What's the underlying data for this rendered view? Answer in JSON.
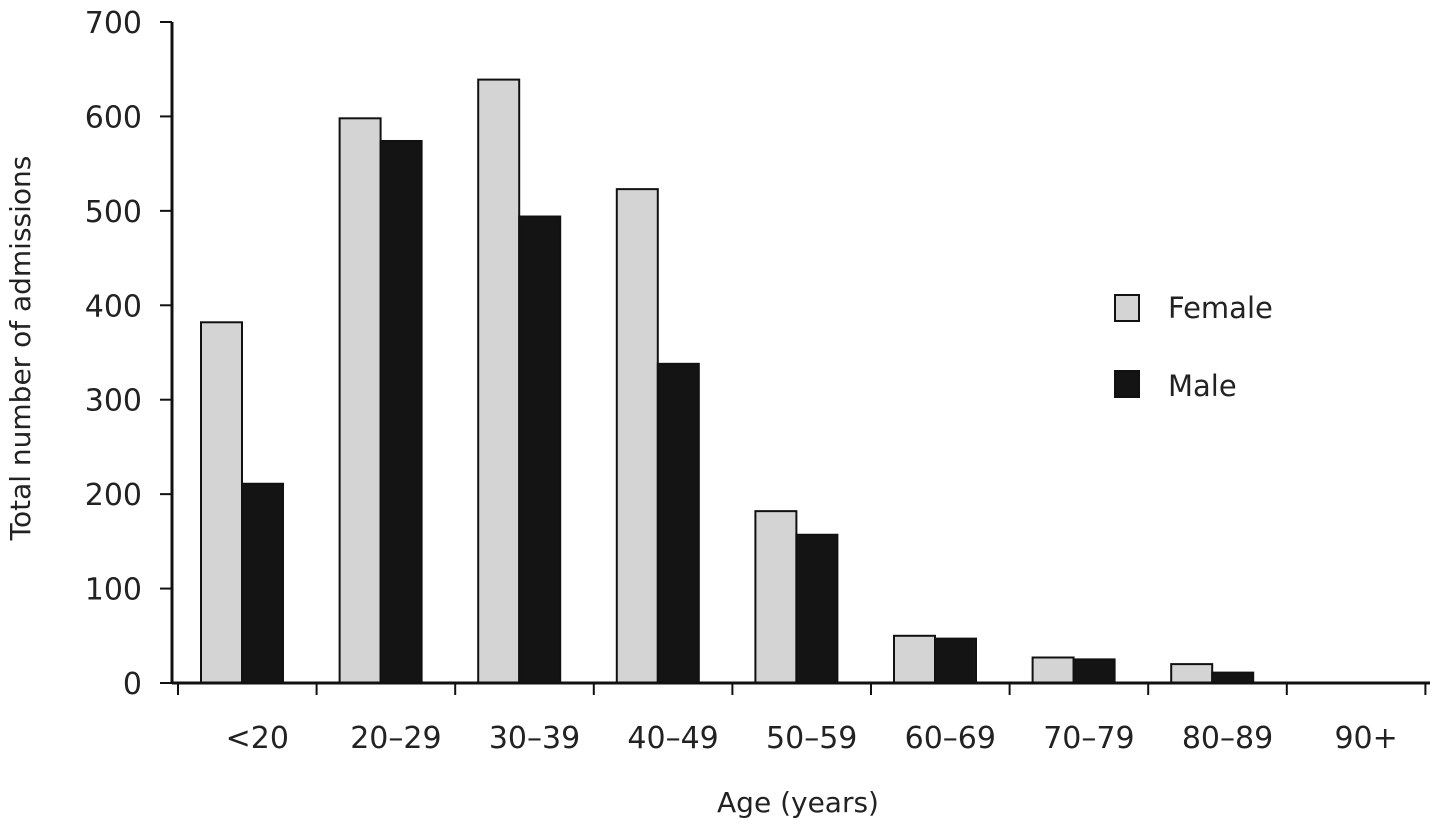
{
  "chart_data": {
    "type": "bar",
    "title": "",
    "xlabel": "Age (years)",
    "ylabel": "Total number of admissions",
    "categories": [
      "<20",
      "20–29",
      "30–39",
      "40–49",
      "50–59",
      "60–69",
      "70–79",
      "80–89",
      "90+"
    ],
    "yticks": [
      "0",
      "100",
      "200",
      "300",
      "400",
      "500",
      "600",
      "700"
    ],
    "ylim": [
      0,
      700
    ],
    "grid": false,
    "legend_position": "right",
    "series": [
      {
        "name": "Female",
        "color": "#d4d4d4",
        "values": [
          382,
          598,
          639,
          523,
          182,
          50,
          27,
          20,
          0
        ]
      },
      {
        "name": "Male",
        "color": "#141414",
        "values": [
          211,
          574,
          494,
          338,
          157,
          47,
          25,
          11,
          0
        ]
      }
    ]
  }
}
